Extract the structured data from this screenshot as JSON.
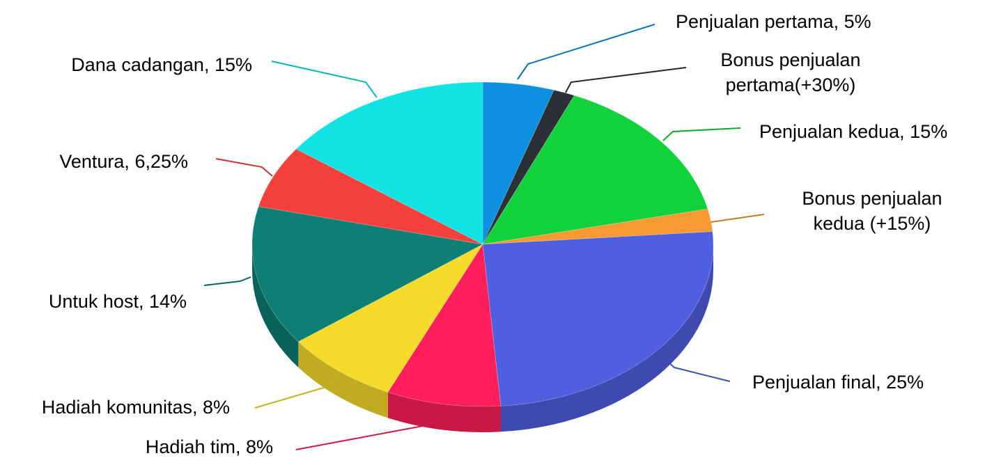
{
  "chart_data": {
    "type": "pie",
    "title": "",
    "slices": [
      {
        "label_lines": [
          "Penjualan pertama, 5%"
        ],
        "value": 5,
        "color": "#0f8fe0"
      },
      {
        "label_lines": [
          "Bonus penjualan",
          "pertama(+30%)"
        ],
        "value": 1.5,
        "color": "#2b2f36"
      },
      {
        "label_lines": [
          "Penjualan kedua, 15%"
        ],
        "value": 15,
        "color": "#12d23c"
      },
      {
        "label_lines": [
          "Bonus penjualan",
          "kedua (+15%)"
        ],
        "value": 2.25,
        "color": "#f79a31"
      },
      {
        "label_lines": [
          "Penjualan final, 25%"
        ],
        "value": 25,
        "color": "#4f5fe0"
      },
      {
        "label_lines": [
          "Hadiah tim, 8%"
        ],
        "value": 8,
        "color": "#ff1f5a"
      },
      {
        "label_lines": [
          "Hadiah komunitas, 8%"
        ],
        "value": 8,
        "color": "#f6db2a"
      },
      {
        "label_lines": [
          "Untuk host, 14%"
        ],
        "value": 14,
        "color": "#0d7f74"
      },
      {
        "label_lines": [
          "Ventura, 6,25%"
        ],
        "value": 6.25,
        "color": "#f4413c"
      },
      {
        "label_lines": [
          "Dana cadangan, 15%"
        ],
        "value": 15,
        "color": "#0fe3e3"
      }
    ]
  }
}
